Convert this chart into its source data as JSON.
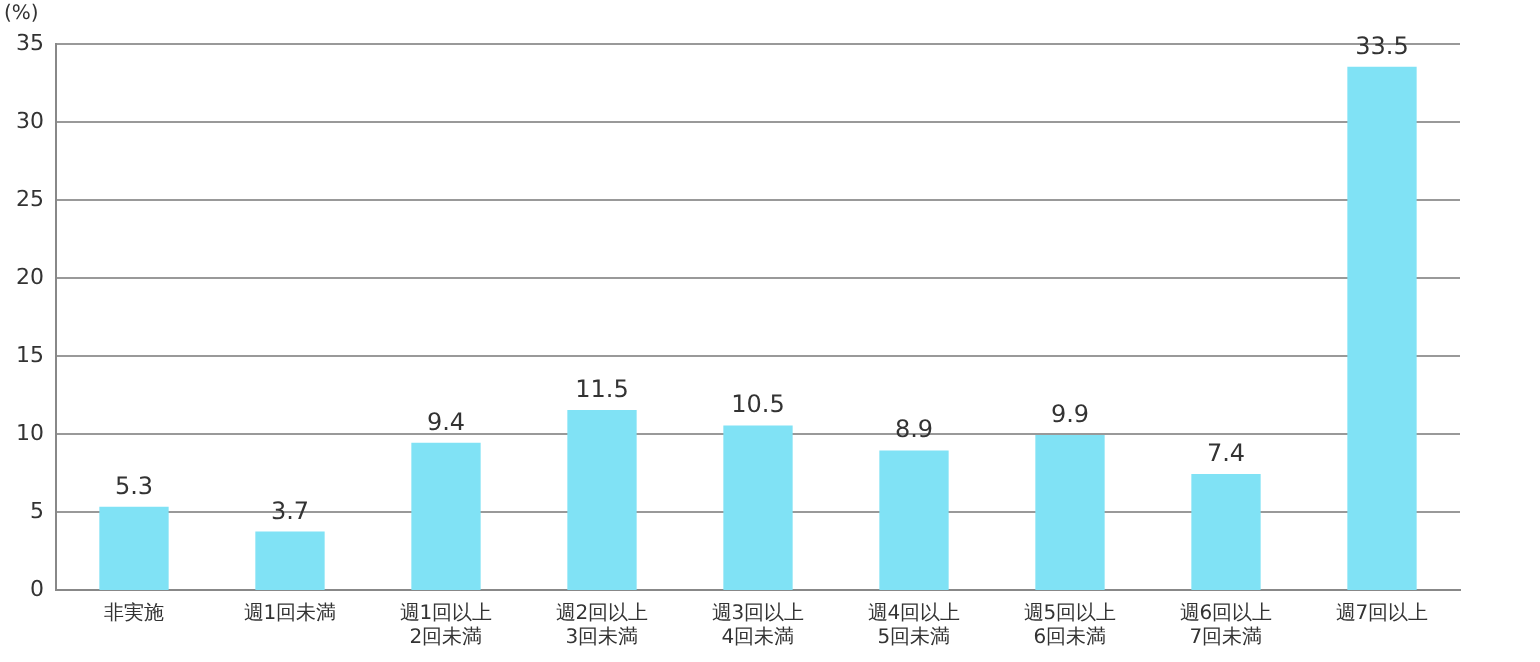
{
  "chart_data": {
    "type": "bar",
    "ylabel": "(%)",
    "categories": [
      "非実施",
      "週1回未満",
      "週1回以上\n2回未満",
      "週2回以上\n3回未満",
      "週3回以上\n4回未満",
      "週4回以上\n5回未満",
      "週5回以上\n6回未満",
      "週6回以上\n7回未満",
      "週7回以上"
    ],
    "values": [
      5.3,
      3.7,
      9.4,
      11.5,
      10.5,
      8.9,
      9.9,
      7.4,
      33.5
    ],
    "color": "#80e2f5",
    "ylim": [
      0,
      35
    ],
    "yticks": [
      0,
      5,
      10,
      15,
      20,
      25,
      30,
      35
    ],
    "grid": "y",
    "data_labels": true
  }
}
